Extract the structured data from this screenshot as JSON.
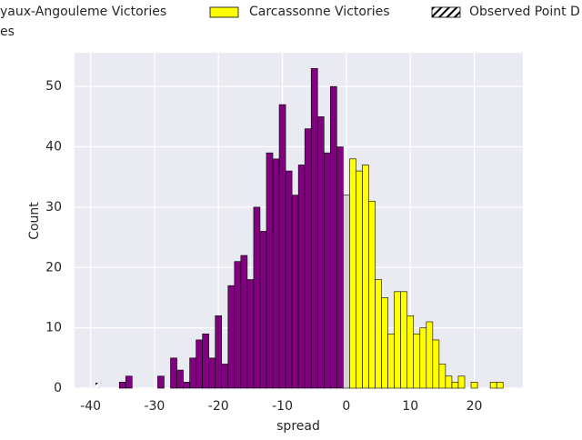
{
  "chart_data": {
    "type": "histogram",
    "xlabel": "spread",
    "ylabel": "Count",
    "xlim": [
      -42.5,
      27.6
    ],
    "ylim": [
      0,
      55.6
    ],
    "xticks": [
      -40,
      -30,
      -20,
      -10,
      0,
      10,
      20
    ],
    "yticks": [
      0,
      10,
      20,
      30,
      40,
      50
    ],
    "grid": true,
    "background": "#eaeaf2",
    "series": [
      {
        "name": "yaux-Angouleme Victories",
        "color": "#800080",
        "bins": [
          -35.5,
          -34.5,
          -33.5,
          -32.5,
          -31.5,
          -30.5,
          -29.5,
          -28.5,
          -27.5,
          -26.5,
          -25.5,
          -24.5,
          -23.5,
          -22.5,
          -21.5,
          -20.5,
          -19.5,
          -18.5,
          -17.5,
          -16.5,
          -15.5,
          -14.5,
          -13.5,
          -12.5,
          -11.5,
          -10.5,
          -9.5,
          -8.5,
          -7.5,
          -6.5,
          -5.5,
          -4.5,
          -3.5,
          -2.5,
          -1.5,
          -0.5
        ],
        "values": [
          1,
          2,
          0,
          0,
          0,
          0,
          2,
          0,
          5,
          3,
          1,
          5,
          8,
          9,
          5,
          12,
          4,
          17,
          21,
          22,
          18,
          30,
          26,
          39,
          38,
          47,
          36,
          32,
          37,
          43,
          53,
          45,
          39,
          50,
          40
        ]
      },
      {
        "name": "es",
        "color": "#d0d0d8",
        "bins": [
          -0.5,
          0.5
        ],
        "values": [
          32
        ]
      },
      {
        "name": "Carcassonne Victories",
        "color": "#ffff00",
        "bins": [
          0.5,
          1.5,
          2.5,
          3.5,
          4.5,
          5.5,
          6.5,
          7.5,
          8.5,
          9.5,
          10.5,
          11.5,
          12.5,
          13.5,
          14.5,
          15.5,
          16.5,
          17.5,
          18.5,
          19.5,
          20.5,
          21.5,
          22.5,
          23.5,
          24.5
        ],
        "values": [
          38,
          36,
          37,
          31,
          18,
          15,
          9,
          16,
          16,
          12,
          9,
          10,
          11,
          8,
          4,
          2,
          1,
          2,
          0,
          1,
          0,
          0,
          1,
          1
        ]
      }
    ],
    "observed": {
      "name": "Observed Point D",
      "x": -39
    }
  }
}
